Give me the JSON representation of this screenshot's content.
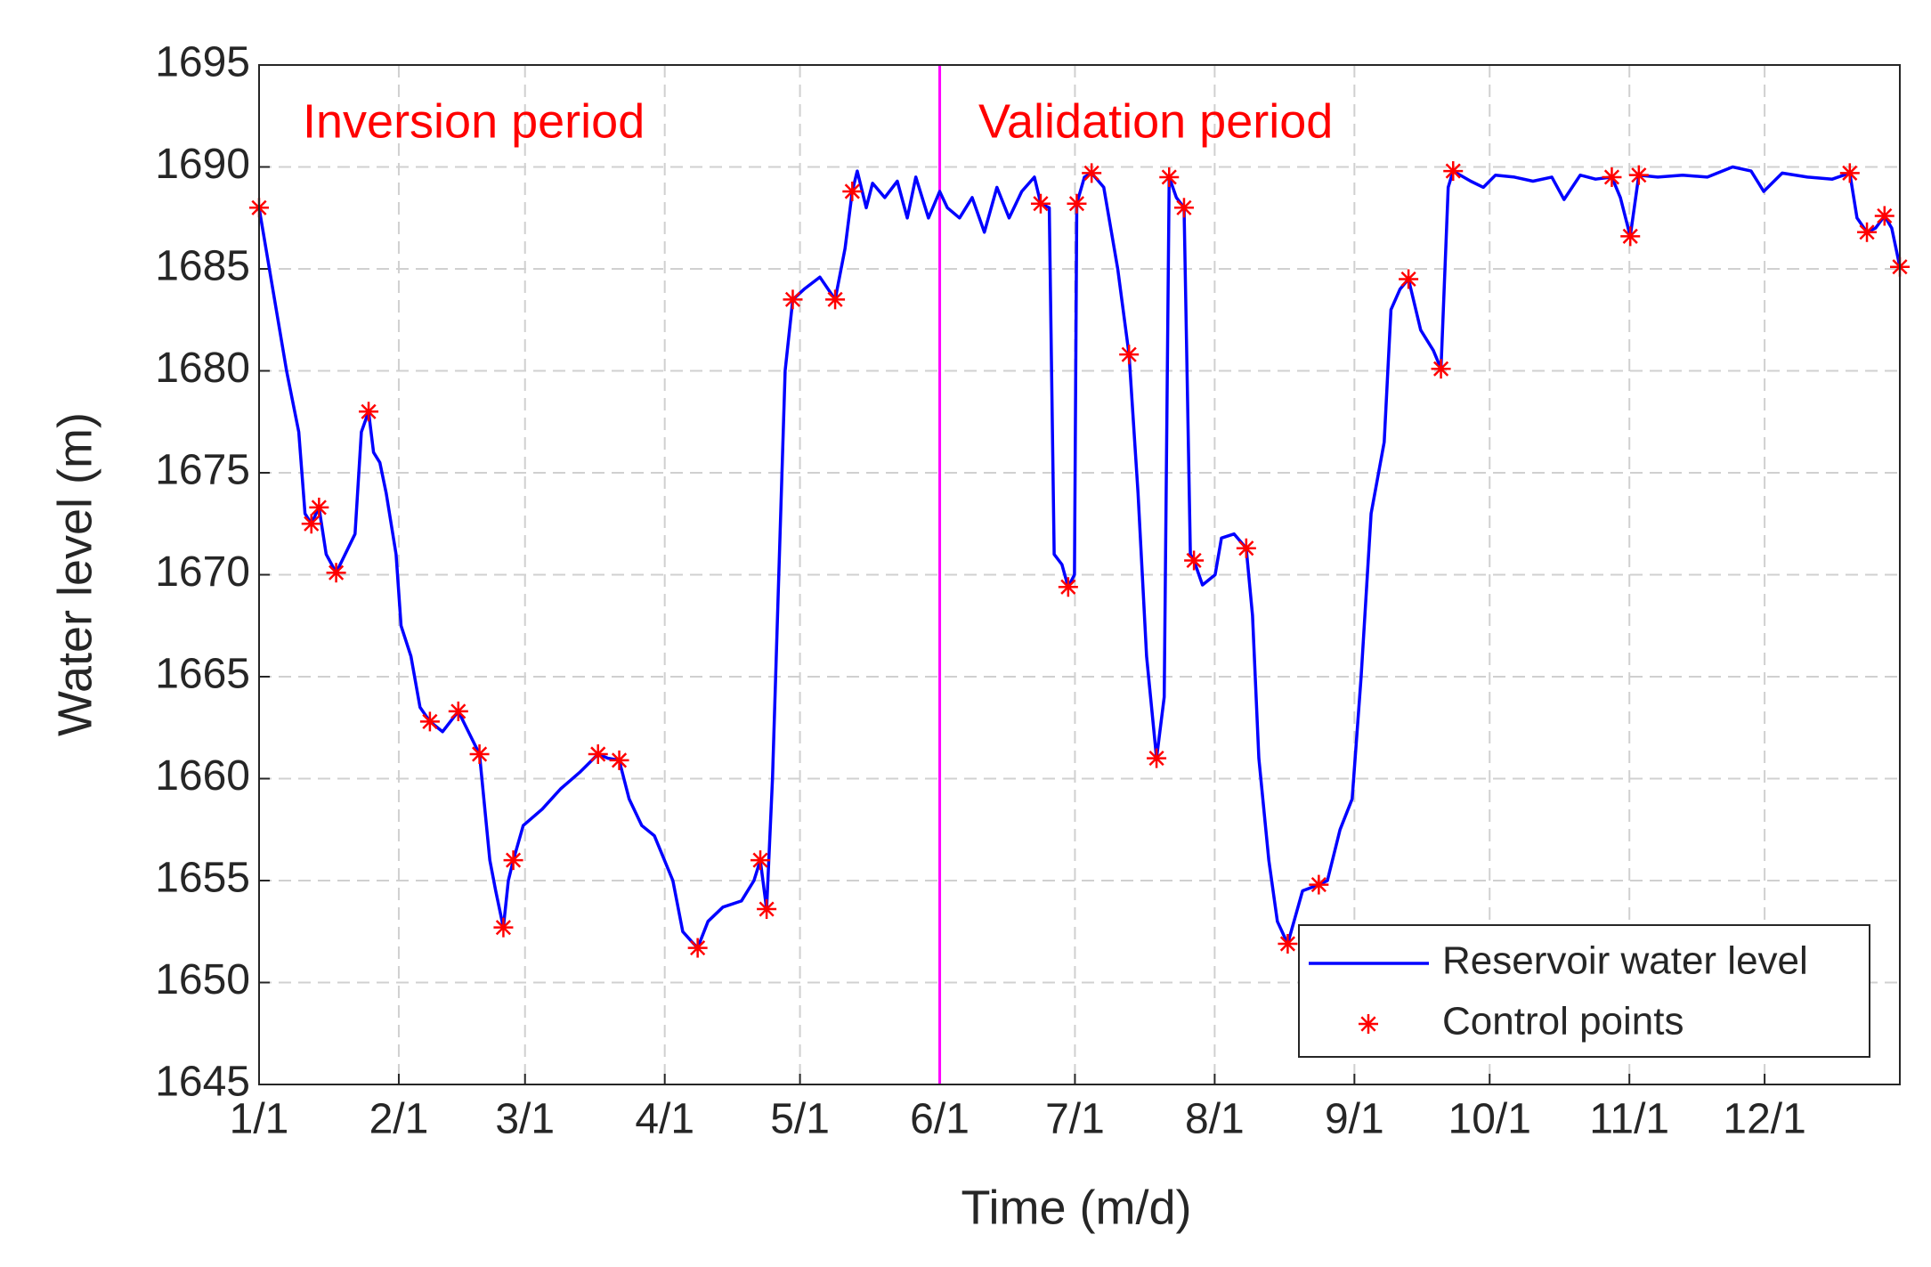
{
  "chart_data": {
    "type": "line",
    "xlabel": "Time (m/d)",
    "ylabel": "Water level (m)",
    "xlim": [
      0,
      364
    ],
    "ylim": [
      1645,
      1695
    ],
    "xticks": [
      {
        "value": 0,
        "label": "1/1"
      },
      {
        "value": 31,
        "label": "2/1"
      },
      {
        "value": 59,
        "label": "3/1"
      },
      {
        "value": 90,
        "label": "4/1"
      },
      {
        "value": 120,
        "label": "5/1"
      },
      {
        "value": 151,
        "label": "6/1"
      },
      {
        "value": 181,
        "label": "7/1"
      },
      {
        "value": 212,
        "label": "8/1"
      },
      {
        "value": 243,
        "label": "9/1"
      },
      {
        "value": 273,
        "label": "10/1"
      },
      {
        "value": 304,
        "label": "11/1"
      },
      {
        "value": 334,
        "label": "12/1"
      }
    ],
    "yticks": [
      1645,
      1650,
      1655,
      1660,
      1665,
      1670,
      1675,
      1680,
      1685,
      1690,
      1695
    ],
    "grid": true,
    "legend": "lower right",
    "annotations": [
      {
        "text": "Inversion period",
        "color": "#ff0000"
      },
      {
        "text": "Validation period",
        "color": "#ff0000"
      }
    ],
    "vline": {
      "x": 151,
      "color": "#ff00ff"
    },
    "series": [
      {
        "name": "Reservoir water level",
        "style": "line",
        "color": "#0000ff",
        "x": [
          0,
          6.1,
          8.8,
          10.2,
          11.6,
          13.3,
          14.9,
          17.1,
          21.3,
          22.7,
          24.3,
          25.4,
          26.8,
          28.2,
          30.4,
          31.5,
          33.7,
          35.7,
          37.9,
          40.7,
          44.2,
          48.9,
          51.2,
          52.5,
          54.2,
          55.3,
          56.4,
          58.6,
          62.8,
          66.9,
          71.1,
          75.2,
          77.4,
          79.9,
          82.1,
          84.9,
          87.7,
          91.8,
          94.0,
          96.0,
          97.3,
          99.6,
          102.9,
          107.0,
          109.8,
          111.2,
          112.6,
          113.9,
          115.3,
          116.7,
          118.4,
          120.9,
          124.4,
          127.8,
          130.0,
          131.6,
          132.7,
          134.7,
          136.1,
          138.8,
          141.6,
          143.8,
          145.7,
          148.5,
          151.0,
          152.7,
          155.4,
          158.2,
          160.9,
          163.7,
          166.4,
          169.2,
          172.0,
          173.4,
          175.3,
          176.4,
          178.1,
          179.5,
          180.9,
          181.4,
          183.1,
          184.7,
          187.4,
          190.5,
          193.0,
          195.0,
          196.9,
          199.1,
          200.8,
          201.9,
          203.5,
          205.2,
          206.6,
          207.4,
          209.3,
          212.1,
          213.5,
          216.3,
          219.0,
          220.4,
          221.8,
          224.0,
          225.9,
          228.2,
          231.5,
          235.1,
          237.0,
          239.8,
          242.5,
          244.5,
          246.7,
          249.6,
          251.1,
          253.1,
          255.0,
          257.7,
          260.5,
          262.2,
          263.8,
          264.9,
          268.8,
          271.6,
          274.3,
          278.5,
          282.6,
          286.8,
          289.5,
          293.1,
          296.5,
          300.1,
          302.0,
          304.2,
          306.1,
          310.3,
          315.8,
          321.3,
          326.9,
          331.0,
          333.8,
          337.9,
          343.5,
          349.0,
          352.9,
          354.5,
          356.7,
          358.6,
          360.6,
          362.2,
          364
        ],
        "values": [
          1688,
          1680,
          1677,
          1673,
          1672.5,
          1673.3,
          1671,
          1670.1,
          1672,
          1677,
          1678,
          1676,
          1675.5,
          1674,
          1671,
          1667.5,
          1666,
          1663.5,
          1662.8,
          1662.3,
          1663.3,
          1661.2,
          1656,
          1654.5,
          1652.7,
          1655,
          1656,
          1657.7,
          1658.5,
          1659.5,
          1660.3,
          1661.2,
          1661,
          1660.9,
          1659,
          1657.7,
          1657.2,
          1655,
          1652.5,
          1652,
          1651.7,
          1653,
          1653.7,
          1654,
          1655,
          1656,
          1653.6,
          1660,
          1670,
          1680,
          1683.5,
          1684,
          1684.6,
          1683.5,
          1686,
          1688.8,
          1689.8,
          1688,
          1689.2,
          1688.5,
          1689.3,
          1687.5,
          1689.5,
          1687.5,
          1688.8,
          1688,
          1687.5,
          1688.5,
          1686.8,
          1689,
          1687.5,
          1688.8,
          1689.5,
          1688.2,
          1688,
          1671,
          1670.5,
          1669.4,
          1670,
          1688.2,
          1689.5,
          1689.7,
          1689,
          1685,
          1680.8,
          1674,
          1666,
          1661,
          1664,
          1689.5,
          1688.5,
          1688,
          1671,
          1670.7,
          1669.5,
          1670,
          1671.8,
          1672,
          1671.3,
          1668,
          1661,
          1656,
          1653,
          1651.9,
          1654.5,
          1654.8,
          1655,
          1657.5,
          1659,
          1665,
          1673,
          1676.5,
          1683,
          1684,
          1684.5,
          1682,
          1681,
          1680.1,
          1689,
          1689.8,
          1689.3,
          1689,
          1689.6,
          1689.5,
          1689.3,
          1689.5,
          1688.4,
          1689.6,
          1689.4,
          1689.5,
          1688.5,
          1686.6,
          1689.6,
          1689.5,
          1689.6,
          1689.5,
          1690,
          1689.8,
          1688.8,
          1689.7,
          1689.5,
          1689.4,
          1689.7,
          1687.5,
          1686.8,
          1687,
          1687.6,
          1687,
          1685.1
        ]
      },
      {
        "name": "Control points",
        "style": "markers",
        "color": "#ff0000",
        "x": [
          0,
          11.6,
          13.3,
          17.1,
          24.3,
          37.9,
          44.2,
          48.9,
          54.2,
          56.4,
          75.2,
          79.9,
          97.3,
          111.2,
          112.6,
          118.4,
          127.8,
          131.6,
          173.4,
          179.5,
          181.4,
          184.7,
          193.0,
          199.1,
          201.9,
          205.2,
          207.4,
          219.0,
          228.2,
          235.1,
          255.0,
          262.2,
          264.9,
          300.1,
          304.2,
          306.1,
          352.9,
          356.7,
          360.6,
          364
        ],
        "values": [
          1688,
          1672.5,
          1673.3,
          1670.1,
          1678,
          1662.8,
          1663.3,
          1661.2,
          1652.7,
          1656,
          1661.2,
          1660.9,
          1651.7,
          1656,
          1653.6,
          1683.5,
          1683.5,
          1688.8,
          1688.2,
          1669.4,
          1688.2,
          1689.7,
          1680.8,
          1661,
          1689.5,
          1688,
          1670.7,
          1671.3,
          1651.9,
          1654.8,
          1684.5,
          1680.1,
          1689.8,
          1689.5,
          1686.6,
          1689.6,
          1689.7,
          1686.8,
          1687.6,
          1685.1
        ]
      }
    ]
  }
}
